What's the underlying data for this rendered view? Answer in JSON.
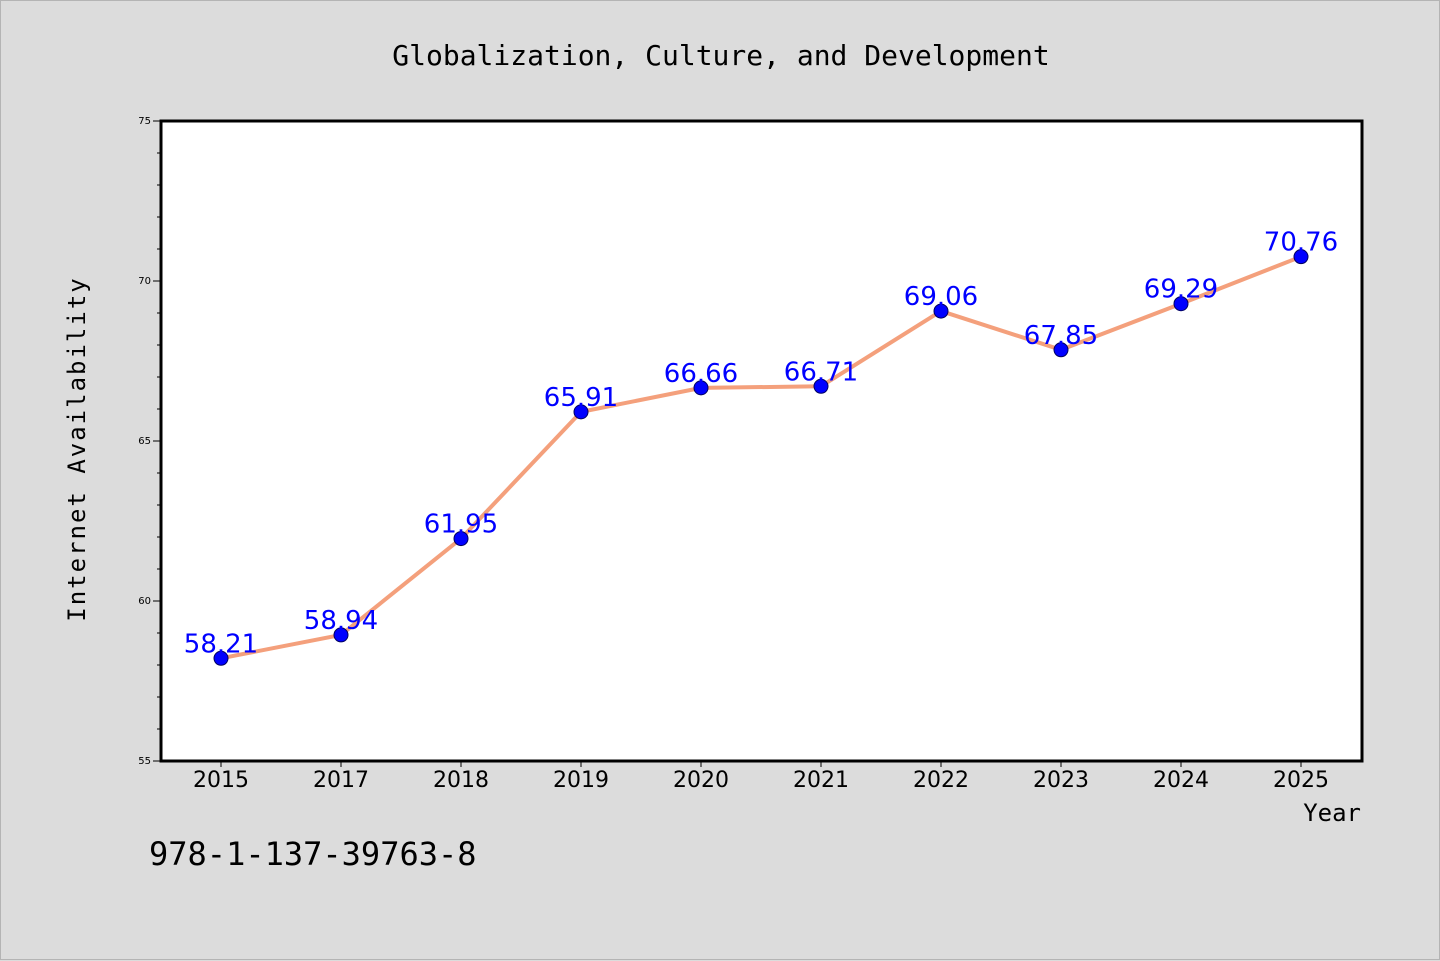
{
  "footer_text": "978-1-137-39763-8",
  "chart_data": {
    "type": "line",
    "title": "Globalization, Culture, and Development",
    "xlabel": "Year",
    "ylabel": "Internet Availability",
    "categories": [
      "2015",
      "2017",
      "2018",
      "2019",
      "2020",
      "2021",
      "2022",
      "2023",
      "2024",
      "2025"
    ],
    "series": [
      {
        "values": [
          58.21,
          58.94,
          61.95,
          65.91,
          66.66,
          66.71,
          69.06,
          67.85,
          69.29,
          70.76
        ],
        "data_labels": [
          "58.21",
          "58.94",
          "61.95",
          "65.91",
          "66.66",
          "66.71",
          "69.06",
          "67.85",
          "69.29",
          "70.76"
        ],
        "line_color": "#f4a07c",
        "marker_color": "#0000ff",
        "label_color": "#0000ff"
      }
    ],
    "ylim": [
      55,
      75
    ],
    "yticks": [
      "55",
      "60",
      "65",
      "70",
      "75"
    ],
    "grid": false,
    "legend": false,
    "colors": {
      "figure_background": "#dcdcdc",
      "plot_background": "#ffffff",
      "axes": "#000000"
    }
  }
}
